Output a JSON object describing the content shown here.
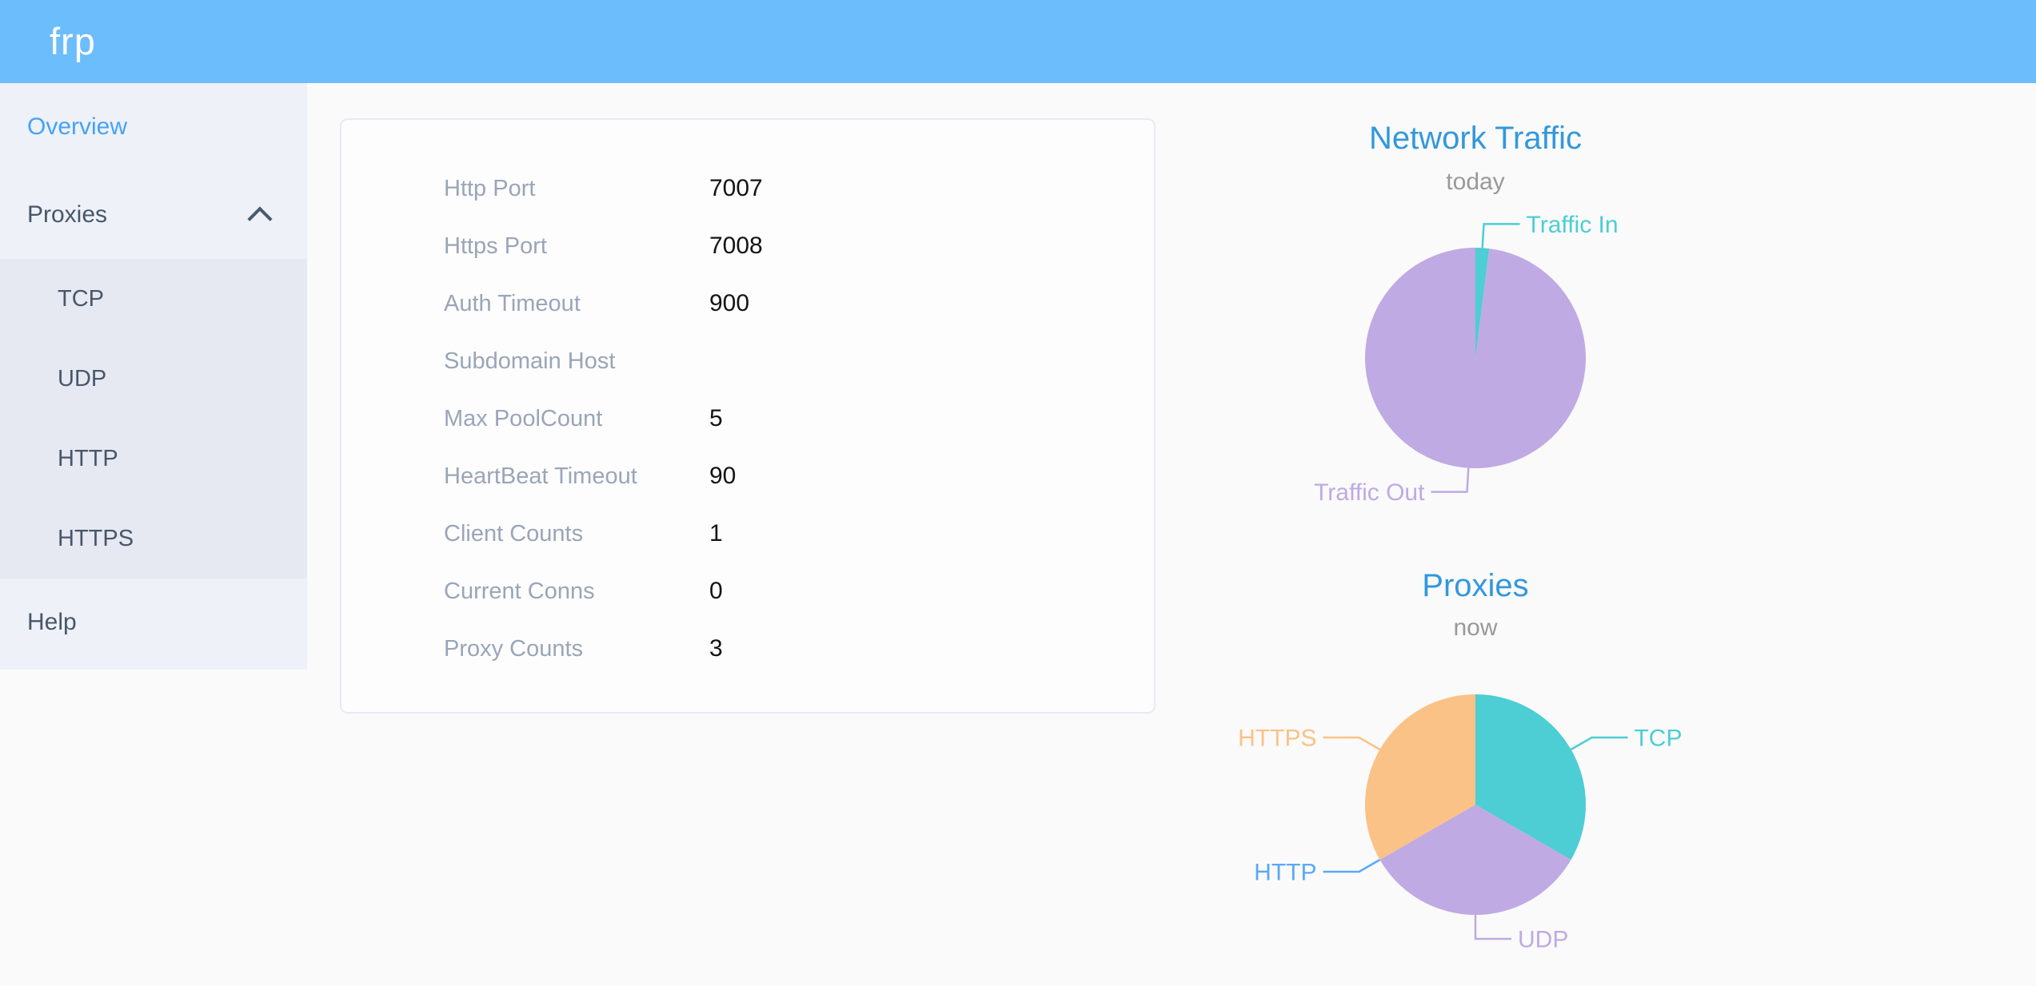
{
  "header": {
    "logo": "frp"
  },
  "sidebar": {
    "overview": "Overview",
    "proxies": "Proxies",
    "proxies_submenu": {
      "tcp": "TCP",
      "udp": "UDP",
      "http": "HTTP",
      "https": "HTTPS"
    },
    "help": "Help"
  },
  "server_config": {
    "rows": [
      {
        "label": "Http Port",
        "value": "7007"
      },
      {
        "label": "Https Port",
        "value": "7008"
      },
      {
        "label": "Auth Timeout",
        "value": "900"
      },
      {
        "label": "Subdomain Host",
        "value": ""
      },
      {
        "label": "Max PoolCount",
        "value": "5"
      },
      {
        "label": "HeartBeat Timeout",
        "value": "90"
      },
      {
        "label": "Client Counts",
        "value": "1"
      },
      {
        "label": "Current Conns",
        "value": "0"
      },
      {
        "label": "Proxy Counts",
        "value": "3"
      }
    ]
  },
  "chart_data": [
    {
      "type": "pie",
      "title": "Network Traffic",
      "subtitle": "today",
      "legend_position": "none",
      "series": [
        {
          "name": "Traffic In",
          "value": 2,
          "color": "#4dcdd4"
        },
        {
          "name": "Traffic Out",
          "value": 98,
          "color": "#bfaae3"
        }
      ]
    },
    {
      "type": "pie",
      "title": "Proxies",
      "subtitle": "now",
      "legend_position": "none",
      "series": [
        {
          "name": "TCP",
          "value": 1,
          "color": "#4dcdd4"
        },
        {
          "name": "UDP",
          "value": 1,
          "color": "#bfaae3"
        },
        {
          "name": "HTTP",
          "value": 0,
          "color": "#5aa9f4"
        },
        {
          "name": "HTTPS",
          "value": 1,
          "color": "#fac286"
        }
      ]
    }
  ],
  "colors": {
    "header_bg": "#6cbdfc",
    "sidebar_bg": "#eef1f7",
    "submenu_bg": "#e6e9f2",
    "menu_text": "#48576a",
    "active_link": "#46a2f9",
    "chart_title": "#3398db",
    "subtitle_text": "#999999",
    "config_label": "#9aa5b8",
    "config_value": "#141414"
  }
}
